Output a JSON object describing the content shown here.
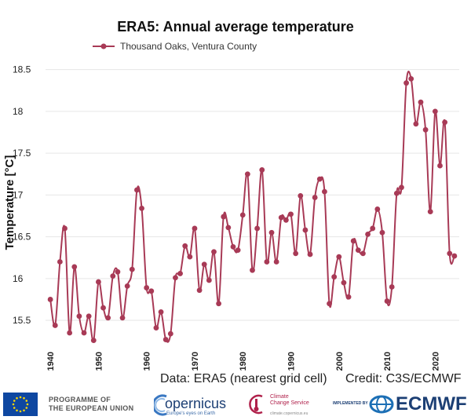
{
  "chart_data": {
    "type": "line",
    "title": "ERA5: Annual average temperature",
    "ylabel": "Temperature [°C]",
    "xlabel": "",
    "ylim": [
      15.2,
      18.6
    ],
    "xlim": [
      1939,
      2025
    ],
    "yticks": [
      "15.5",
      "16",
      "16.5",
      "17",
      "17.5",
      "18",
      "18.5"
    ],
    "xticks": [
      "1940",
      "1950",
      "1960",
      "1970",
      "1980",
      "1990",
      "2000",
      "2010",
      "2020"
    ],
    "grid": true,
    "legend_position": "top-left",
    "series": [
      {
        "name": "Thousand Oaks, Ventura County",
        "color": "#a83a56",
        "x": [
          1940,
          1941,
          1942,
          1943,
          1944,
          1945,
          1946,
          1947,
          1948,
          1949,
          1950,
          1951,
          1952,
          1953,
          1954,
          1955,
          1956,
          1957,
          1958,
          1959,
          1960,
          1961,
          1962,
          1963,
          1964,
          1965,
          1966,
          1967,
          1968,
          1969,
          1970,
          1971,
          1972,
          1973,
          1974,
          1975,
          1976,
          1977,
          1978,
          1979,
          1980,
          1981,
          1982,
          1983,
          1984,
          1985,
          1986,
          1987,
          1988,
          1989,
          1990,
          1991,
          1992,
          1993,
          1994,
          1995,
          1996,
          1997,
          1998,
          1999,
          2000,
          2001,
          2002,
          2003,
          2004,
          2005,
          2006,
          2007,
          2008,
          2009,
          2010,
          2011,
          2012,
          2013,
          2014,
          2015,
          2016,
          2017,
          2018,
          2019,
          2020,
          2021,
          2022,
          2023,
          2024
        ],
        "values": [
          15.75,
          15.44,
          16.2,
          16.6,
          15.35,
          16.14,
          15.55,
          15.35,
          15.55,
          15.26,
          15.96,
          15.65,
          15.53,
          16.03,
          16.08,
          15.53,
          15.91,
          16.11,
          17.06,
          16.84,
          15.89,
          15.85,
          15.41,
          15.6,
          15.27,
          15.34,
          16.01,
          16.06,
          16.39,
          16.26,
          16.6,
          15.86,
          16.17,
          15.98,
          16.32,
          15.7,
          16.74,
          16.61,
          16.38,
          16.34,
          16.76,
          17.25,
          16.1,
          16.6,
          17.3,
          16.2,
          16.55,
          16.2,
          16.73,
          16.7,
          16.77,
          16.3,
          16.99,
          16.58,
          16.29,
          16.97,
          17.19,
          17.04,
          15.7,
          16.02,
          16.26,
          15.95,
          15.78,
          16.45,
          16.34,
          16.3,
          16.53,
          16.6,
          16.83,
          16.55,
          15.73,
          15.9,
          17.02,
          17.09,
          18.34,
          18.39,
          17.85,
          18.11,
          17.78,
          16.8,
          18.0,
          17.35,
          17.87,
          16.3,
          16.27
        ]
      }
    ]
  },
  "footer": {
    "data_source": "Data: ERA5 (nearest grid cell)",
    "credit": "Credit: C3S/ECMWF"
  },
  "logos": {
    "eu_line1": "PROGRAMME OF",
    "eu_line2": "THE EUROPEAN UNION",
    "copernicus": "opernicus",
    "copernicus_tagline": "Europe's eyes on Earth",
    "c3s_line1": "Climate",
    "c3s_line2": "Change Service",
    "c3s_url": "climate.copernicus.eu",
    "implemented_by": "IMPLEMENTED BY",
    "ecmwf": "ECMWF"
  }
}
